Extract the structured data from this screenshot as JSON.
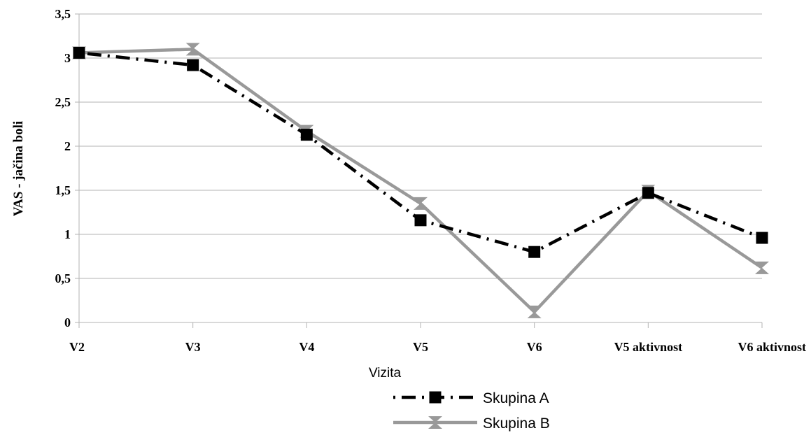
{
  "chart_data": {
    "type": "line",
    "categories": [
      "V2",
      "V3",
      "V4",
      "V5",
      "V6",
      "V5 aktivnost",
      "V6 aktivnost"
    ],
    "ylim": [
      0,
      3.5
    ],
    "yticks": [
      "0",
      "0,5",
      "1",
      "1,5",
      "2",
      "2,5",
      "3",
      "3,5"
    ],
    "xlabel": "Vizita",
    "ylabel": "VAS - jačina boli",
    "grid": true,
    "legend_position": "bottom",
    "series": [
      {
        "name": "Skupina A",
        "values": [
          3.06,
          2.92,
          2.13,
          1.16,
          0.8,
          1.47,
          0.96
        ],
        "color": "#000000",
        "marker": "square",
        "line_style": "dash-dot"
      },
      {
        "name": "Skupina B",
        "values": [
          3.06,
          3.1,
          2.17,
          1.35,
          0.12,
          1.49,
          0.62
        ],
        "color": "#999999",
        "marker": "hourglass",
        "line_style": "solid"
      }
    ]
  }
}
